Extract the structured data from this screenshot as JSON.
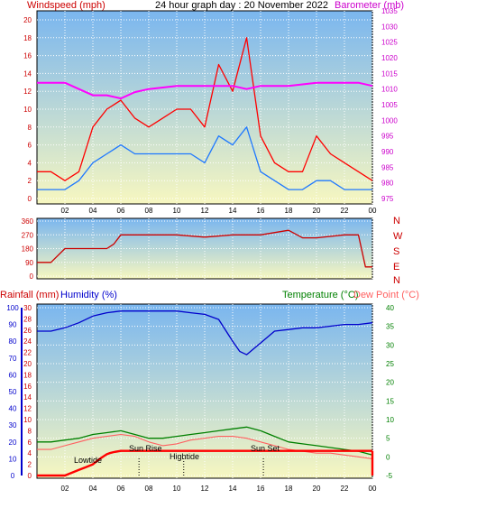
{
  "colors": {
    "windspeed": "#ff0000",
    "gust": "#ff0000",
    "wind_avg": "#1e78ff",
    "barometer": "#ff00ff",
    "direction": "#cc0000",
    "rainfall": "#ff0000",
    "humidity": "#0000cc",
    "temperature": "#008000",
    "dewpoint": "#ff6060",
    "bg_top": "#7ab6ef",
    "bg_bottom": "#f7f7c0"
  },
  "top": {
    "title": "24 hour graph day : 20 November 2022",
    "left_label": "Windspeed (mph)",
    "right_label": "Barometer (mb)"
  },
  "mid": {
    "compass": [
      "N",
      "W",
      "S",
      "E",
      "N"
    ]
  },
  "bottom": {
    "rain_label": "Rainfall (mm)",
    "hum_label": "Humidity (%)",
    "temp_label": "Temperature (°C)",
    "dew_label": "Dew Point (°C)",
    "annotations": {
      "lowtide": "Lowtide",
      "sunrise": "Sun Rise",
      "hightide": "Hightide",
      "sunset": "Sun Set"
    }
  },
  "chart_data": [
    {
      "type": "line",
      "x_ticks": [
        "02",
        "04",
        "06",
        "08",
        "10",
        "12",
        "14",
        "16",
        "18",
        "20",
        "22",
        "00"
      ],
      "y_ticks_left": [
        "0",
        "2",
        "4",
        "6",
        "8",
        "10",
        "12",
        "14",
        "16",
        "18",
        "20"
      ],
      "y_ticks_right": [
        "975",
        "980",
        "985",
        "990",
        "995",
        "1000",
        "1005",
        "1010",
        "1015",
        "1020",
        "1025",
        "1030",
        "1035"
      ],
      "ylim_left": [
        0,
        20
      ],
      "ylim_right": [
        975,
        1035
      ],
      "series": [
        {
          "name": "Windspeed",
          "axis": "left",
          "x": [
            0,
            1,
            2,
            3,
            4,
            5,
            6,
            7,
            8,
            9,
            10,
            11,
            12,
            13,
            14,
            15,
            16,
            17,
            18,
            19,
            20,
            21,
            22,
            23,
            24
          ],
          "values": [
            1,
            1,
            1,
            2,
            4,
            5,
            6,
            5,
            5,
            5,
            5,
            5,
            4,
            7,
            6,
            8,
            3,
            2,
            1,
            1,
            2,
            2,
            1,
            1,
            1
          ]
        },
        {
          "name": "Gust",
          "axis": "left",
          "x": [
            0,
            1,
            2,
            3,
            4,
            5,
            6,
            7,
            8,
            9,
            10,
            11,
            12,
            13,
            14,
            15,
            16,
            17,
            18,
            19,
            20,
            21,
            22,
            23,
            24
          ],
          "values": [
            3,
            3,
            2,
            3,
            8,
            10,
            11,
            9,
            8,
            9,
            10,
            10,
            8,
            15,
            12,
            18,
            7,
            4,
            3,
            3,
            7,
            5,
            4,
            3,
            2
          ]
        },
        {
          "name": "Barometer",
          "axis": "right",
          "x": [
            0,
            2,
            3,
            4,
            5,
            6,
            7,
            8,
            10,
            12,
            14,
            15,
            16,
            18,
            20,
            22,
            23,
            24
          ],
          "values": [
            1012,
            1012,
            1010,
            1008,
            1008,
            1007,
            1009,
            1010,
            1011,
            1011,
            1011,
            1010,
            1011,
            1011,
            1012,
            1012,
            1012,
            1011
          ]
        }
      ]
    },
    {
      "type": "line",
      "y_ticks": [
        "0",
        "90",
        "180",
        "270",
        "360"
      ],
      "ylim": [
        0,
        360
      ],
      "series": [
        {
          "name": "Wind direction",
          "x": [
            0,
            1,
            2,
            3,
            4,
            5,
            5.5,
            6,
            8,
            10,
            12,
            14,
            16,
            18,
            19,
            20,
            22,
            23,
            23.5,
            24
          ],
          "values": [
            90,
            90,
            180,
            180,
            180,
            180,
            210,
            270,
            270,
            270,
            255,
            270,
            270,
            300,
            250,
            250,
            270,
            270,
            60,
            60
          ]
        }
      ]
    },
    {
      "type": "line",
      "y_ticks_rain": [
        "0",
        "2",
        "4",
        "6",
        "8",
        "10",
        "12",
        "14",
        "16",
        "18",
        "20",
        "22",
        "24",
        "26",
        "28",
        "30"
      ],
      "y_ticks_hum": [
        "0",
        "10",
        "20",
        "30",
        "40",
        "50",
        "60",
        "70",
        "80",
        "90",
        "100"
      ],
      "y_ticks_temp": [
        "-5",
        "0",
        "5",
        "10",
        "15",
        "20",
        "25",
        "30",
        "35",
        "40"
      ],
      "ylim_rain": [
        0,
        30
      ],
      "ylim_hum": [
        0,
        100
      ],
      "ylim_temp": [
        -5,
        40
      ],
      "series": [
        {
          "name": "Humidity",
          "axis": "hum",
          "x": [
            0,
            1,
            2,
            3,
            4,
            5,
            6,
            7,
            8,
            9,
            10,
            11,
            12,
            13,
            14,
            14.5,
            15,
            16,
            17,
            18,
            19,
            20,
            21,
            22,
            23,
            24
          ],
          "values": [
            86,
            86,
            88,
            91,
            95,
            97,
            98,
            98,
            98,
            98,
            98,
            97,
            96,
            93,
            80,
            74,
            72,
            79,
            86,
            87,
            88,
            88,
            89,
            90,
            90,
            91
          ]
        },
        {
          "name": "Temperature",
          "axis": "temp",
          "x": [
            0,
            1,
            2,
            3,
            4,
            5,
            6,
            7,
            8,
            9,
            10,
            11,
            12,
            13,
            14,
            15,
            16,
            17,
            18,
            19,
            20,
            21,
            22,
            23,
            24
          ],
          "values": [
            4,
            4,
            4.5,
            5,
            6,
            6.5,
            7,
            6,
            5,
            5,
            5.5,
            6,
            6.5,
            7,
            7.5,
            8,
            7,
            5.5,
            4,
            3.5,
            3,
            2.5,
            2,
            1.5,
            0.5
          ]
        },
        {
          "name": "Dew Point",
          "axis": "temp",
          "x": [
            0,
            1,
            2,
            3,
            4,
            5,
            6,
            7,
            8,
            9,
            10,
            11,
            12,
            13,
            14,
            15,
            16,
            17,
            18,
            19,
            20,
            21,
            22,
            23,
            24
          ],
          "values": [
            2,
            2,
            3,
            4,
            5,
            5.5,
            6,
            5.5,
            4,
            3,
            3.5,
            4.5,
            5,
            5.5,
            5.5,
            5,
            4,
            3,
            2,
            1.5,
            1,
            1,
            0.5,
            0,
            -0.5
          ]
        },
        {
          "name": "Rainfall",
          "axis": "rain",
          "x": [
            0,
            1,
            2,
            3,
            3.5,
            4,
            4.5,
            5,
            5.2,
            5.5,
            6,
            24
          ],
          "values": [
            0,
            0,
            0,
            1,
            1.5,
            2,
            3,
            3.8,
            4,
            4.2,
            4.4,
            4.4
          ]
        }
      ]
    }
  ]
}
